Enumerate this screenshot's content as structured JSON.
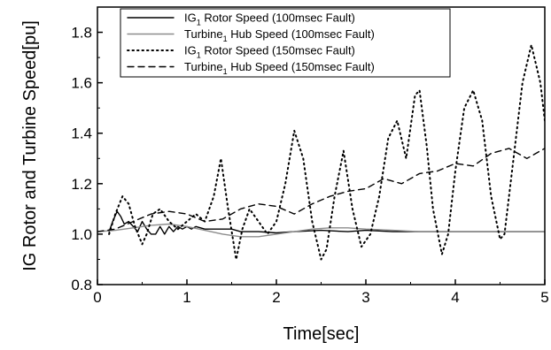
{
  "chart_data": {
    "type": "line",
    "xlabel": "Time[sec]",
    "ylabel": "IG Rotor and Turbine Speed[pu]",
    "xlim": [
      0,
      5
    ],
    "ylim": [
      0.8,
      1.9
    ],
    "xticks": [
      "0",
      "1",
      "2",
      "3",
      "4",
      "5"
    ],
    "yticks": [
      "0.8",
      "1.0",
      "1.2",
      "1.4",
      "1.6",
      "1.8"
    ],
    "grid": false,
    "legend_position": "top",
    "series": [
      {
        "name": "IG1 Rotor Speed (100msec Fault)",
        "legend": {
          "pre": "IG",
          "sub": "1",
          "post": " Rotor Speed (100msec Fault)"
        },
        "color": "#000000",
        "style": "solid",
        "x": [
          0.13,
          0.17,
          0.22,
          0.26,
          0.3,
          0.35,
          0.4,
          0.45,
          0.5,
          0.55,
          0.6,
          0.65,
          0.7,
          0.75,
          0.8,
          0.85,
          0.9,
          0.95,
          1.0,
          1.05,
          1.1,
          1.2,
          1.3,
          1.4,
          1.5,
          1.6,
          1.8,
          2.0,
          2.2,
          2.5,
          2.8,
          3.0,
          3.3,
          3.6,
          4.0,
          4.5,
          5.0
        ],
        "y": [
          1.01,
          1.05,
          1.09,
          1.07,
          1.04,
          1.05,
          1.03,
          1.01,
          1.05,
          1.02,
          1.0,
          1.0,
          1.03,
          1.0,
          1.03,
          1.01,
          1.03,
          1.02,
          1.03,
          1.02,
          1.03,
          1.02,
          1.02,
          1.02,
          1.02,
          1.01,
          1.01,
          1.005,
          1.01,
          1.015,
          1.01,
          1.015,
          1.01,
          1.01,
          1.01,
          1.01,
          1.01
        ]
      },
      {
        "name": "Turbine1 Hub Speed (100msec Fault)",
        "legend": {
          "pre": "Turbine",
          "sub": "1",
          "post": " Hub Speed (100msec Fault)"
        },
        "color": "#8c8c8c",
        "style": "solid",
        "x": [
          0.0,
          0.2,
          0.4,
          0.6,
          0.8,
          1.0,
          1.2,
          1.4,
          1.6,
          1.8,
          2.0,
          2.2,
          2.4,
          2.6,
          2.8,
          3.0,
          3.3,
          3.6,
          4.0,
          4.5,
          5.0
        ],
        "y": [
          1.01,
          1.015,
          1.025,
          1.035,
          1.04,
          1.03,
          1.015,
          1.0,
          0.99,
          0.99,
          1.0,
          1.01,
          1.02,
          1.025,
          1.025,
          1.02,
          1.015,
          1.01,
          1.01,
          1.01,
          1.01
        ]
      },
      {
        "name": "IG1 Rotor Speed (150msec Fault)",
        "legend": {
          "pre": "IG",
          "sub": "1",
          "post": " Rotor Speed (150msec Fault)"
        },
        "color": "#000000",
        "style": "dotted",
        "x": [
          0.13,
          0.2,
          0.28,
          0.35,
          0.42,
          0.5,
          0.55,
          0.62,
          0.7,
          0.8,
          0.9,
          1.0,
          1.1,
          1.2,
          1.3,
          1.38,
          1.46,
          1.55,
          1.62,
          1.7,
          1.8,
          1.9,
          2.0,
          2.1,
          2.2,
          2.3,
          2.4,
          2.5,
          2.56,
          2.65,
          2.75,
          2.85,
          2.95,
          3.05,
          3.15,
          3.25,
          3.35,
          3.45,
          3.55,
          3.6,
          3.68,
          3.75,
          3.85,
          3.92,
          4.0,
          4.1,
          4.2,
          4.3,
          4.4,
          4.5,
          4.55,
          4.65,
          4.75,
          4.85,
          4.95,
          5.0
        ],
        "y": [
          1.0,
          1.08,
          1.15,
          1.12,
          1.03,
          0.96,
          1.0,
          1.08,
          1.1,
          1.05,
          1.02,
          1.05,
          1.08,
          1.05,
          1.15,
          1.3,
          1.1,
          0.9,
          1.02,
          1.1,
          1.05,
          1.0,
          1.05,
          1.2,
          1.41,
          1.3,
          1.05,
          0.9,
          0.94,
          1.15,
          1.33,
          1.1,
          0.95,
          1.0,
          1.15,
          1.38,
          1.45,
          1.3,
          1.55,
          1.57,
          1.35,
          1.1,
          0.92,
          1.0,
          1.25,
          1.5,
          1.57,
          1.45,
          1.15,
          0.98,
          1.0,
          1.3,
          1.6,
          1.75,
          1.6,
          1.45
        ]
      },
      {
        "name": "Turbine1 Hub Speed (150msec Fault)",
        "legend": {
          "pre": "Turbine",
          "sub": "1",
          "post": " Hub Speed (150msec Fault)"
        },
        "color": "#000000",
        "style": "dashed",
        "x": [
          0.0,
          0.2,
          0.4,
          0.6,
          0.8,
          1.0,
          1.2,
          1.4,
          1.6,
          1.8,
          2.0,
          2.2,
          2.4,
          2.6,
          2.8,
          3.0,
          3.2,
          3.4,
          3.6,
          3.8,
          4.0,
          4.2,
          4.4,
          4.6,
          4.8,
          5.0
        ],
        "y": [
          1.01,
          1.02,
          1.05,
          1.08,
          1.09,
          1.08,
          1.05,
          1.06,
          1.1,
          1.12,
          1.11,
          1.08,
          1.12,
          1.15,
          1.17,
          1.18,
          1.22,
          1.2,
          1.24,
          1.25,
          1.28,
          1.27,
          1.32,
          1.34,
          1.3,
          1.34
        ]
      }
    ]
  }
}
